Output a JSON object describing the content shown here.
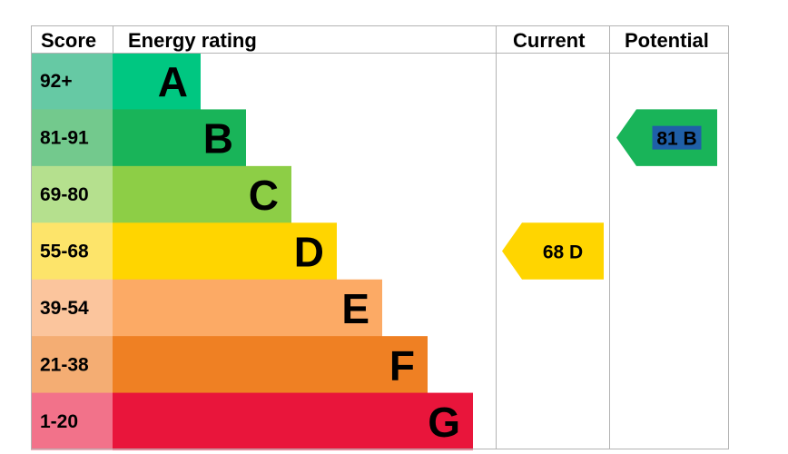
{
  "chart_data": {
    "type": "bar",
    "headers": {
      "score": "Score",
      "rating": "Energy rating",
      "current": "Current",
      "potential": "Potential"
    },
    "bands": [
      {
        "letter": "A",
        "score": "92+",
        "color": "#00c781",
        "score_bg": "#66c9a4"
      },
      {
        "letter": "B",
        "score": "81-91",
        "color": "#19b459",
        "score_bg": "#73c98d"
      },
      {
        "letter": "C",
        "score": "69-80",
        "color": "#8dce46",
        "score_bg": "#b5e08e"
      },
      {
        "letter": "D",
        "score": "55-68",
        "color": "#ffd500",
        "score_bg": "#fde46a"
      },
      {
        "letter": "E",
        "score": "39-54",
        "color": "#fcaa65",
        "score_bg": "#fbc59d"
      },
      {
        "letter": "F",
        "score": "21-38",
        "color": "#ef8023",
        "score_bg": "#f4ad73"
      },
      {
        "letter": "G",
        "score": "1-20",
        "color": "#e9153b",
        "score_bg": "#f2728a"
      }
    ],
    "current": {
      "value": 68,
      "band": "D",
      "label": "68  D",
      "color": "#ffd500"
    },
    "potential": {
      "value": 81,
      "band": "B",
      "label": "81  B",
      "color": "#19b459",
      "highlight": "#1f5fa8"
    }
  }
}
